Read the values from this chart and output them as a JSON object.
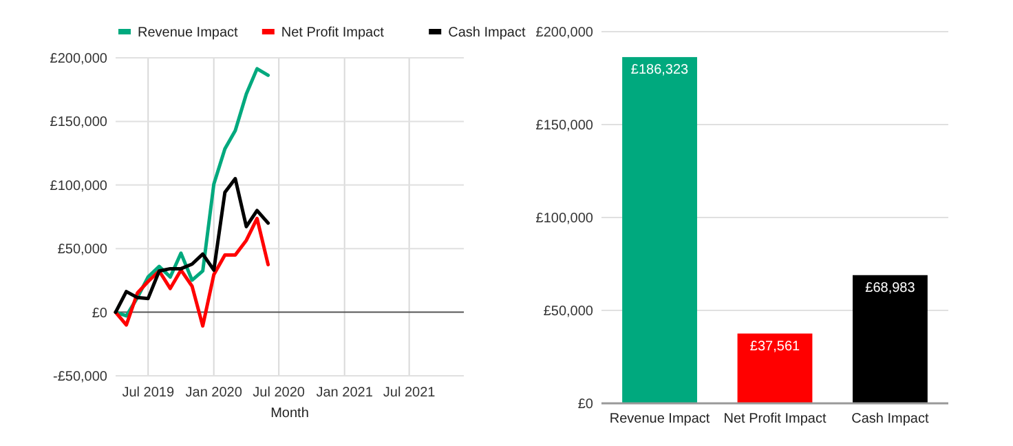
{
  "chart_data": [
    {
      "type": "line",
      "xlabel": "Month",
      "x": [
        "2019-04",
        "2019-05",
        "2019-06",
        "2019-07",
        "2019-08",
        "2019-09",
        "2019-10",
        "2019-11",
        "2019-12",
        "2020-01",
        "2020-02",
        "2020-03",
        "2020-04",
        "2020-05",
        "2020-06"
      ],
      "series": [
        {
          "name": "Revenue Impact",
          "color": "#00a97e",
          "values": [
            0,
            -2900,
            11500,
            27700,
            36000,
            27700,
            46400,
            25200,
            32400,
            100700,
            128400,
            142800,
            171600,
            191400,
            186300
          ]
        },
        {
          "name": "Net Profit Impact",
          "color": "#ff0000",
          "values": [
            0,
            -10000,
            15100,
            24100,
            32400,
            18700,
            33100,
            20500,
            -10800,
            29500,
            45000,
            45000,
            56500,
            73700,
            37400
          ]
        },
        {
          "name": "Cash Impact",
          "color": "#000000",
          "values": [
            0,
            16200,
            11500,
            10800,
            32400,
            34200,
            34200,
            37800,
            45700,
            33100,
            94200,
            105000,
            67300,
            79900,
            70100
          ]
        }
      ],
      "xlim": [
        "2019-04",
        "2021-12"
      ],
      "xticks": [
        {
          "value": "2019-07",
          "label": "Jul 2019"
        },
        {
          "value": "2020-01",
          "label": "Jan 2020"
        },
        {
          "value": "2020-07",
          "label": "Jul 2020"
        },
        {
          "value": "2021-01",
          "label": "Jan 2021"
        },
        {
          "value": "2021-07",
          "label": "Jul 2021"
        }
      ],
      "ylim": [
        -50000,
        200000
      ],
      "yticks": [
        {
          "value": -50000,
          "label": "-£50,000"
        },
        {
          "value": 0,
          "label": "£0"
        },
        {
          "value": 50000,
          "label": "£50,000"
        },
        {
          "value": 100000,
          "label": "£100,000"
        },
        {
          "value": 150000,
          "label": "£150,000"
        },
        {
          "value": 200000,
          "label": "£200,000"
        }
      ],
      "grid": true,
      "legend": "top",
      "line_style": "solid",
      "marker": "none"
    },
    {
      "type": "bar",
      "categories": [
        "Revenue Impact",
        "Net Profit Impact",
        "Cash Impact"
      ],
      "values": [
        186323,
        37561,
        68983
      ],
      "colors": [
        "#00a97e",
        "#ff0000",
        "#000000"
      ],
      "value_labels": [
        "£186,323",
        "£37,561",
        "£68,983"
      ],
      "ylim": [
        0,
        200000
      ],
      "yticks": [
        {
          "value": 0,
          "label": "£0"
        },
        {
          "value": 50000,
          "label": "£50,000"
        },
        {
          "value": 100000,
          "label": "£100,000"
        },
        {
          "value": 150000,
          "label": "£150,000"
        },
        {
          "value": 200000,
          "label": "£200,000"
        }
      ],
      "grid": "y"
    }
  ]
}
